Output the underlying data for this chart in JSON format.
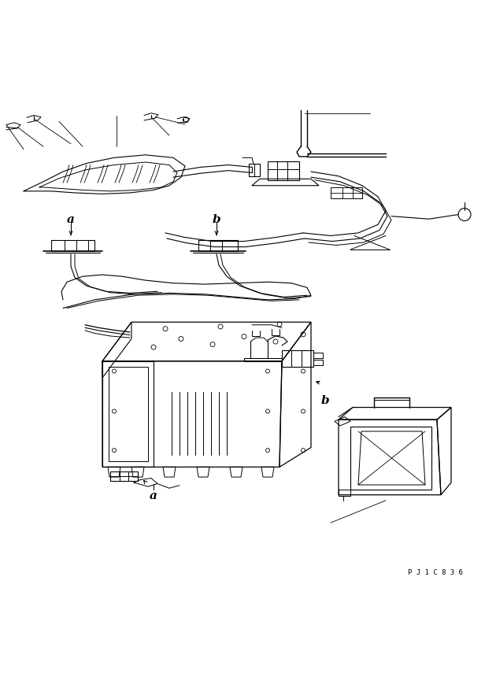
{
  "bg_color": "#ffffff",
  "line_color": "#000000",
  "fig_width": 6.16,
  "fig_height": 8.7,
  "dpi": 100,
  "label_a1": "a",
  "label_b1": "b",
  "label_a2": "a",
  "label_b2": "b",
  "code": "P J 1 C 8 3 6",
  "lw": 0.7
}
